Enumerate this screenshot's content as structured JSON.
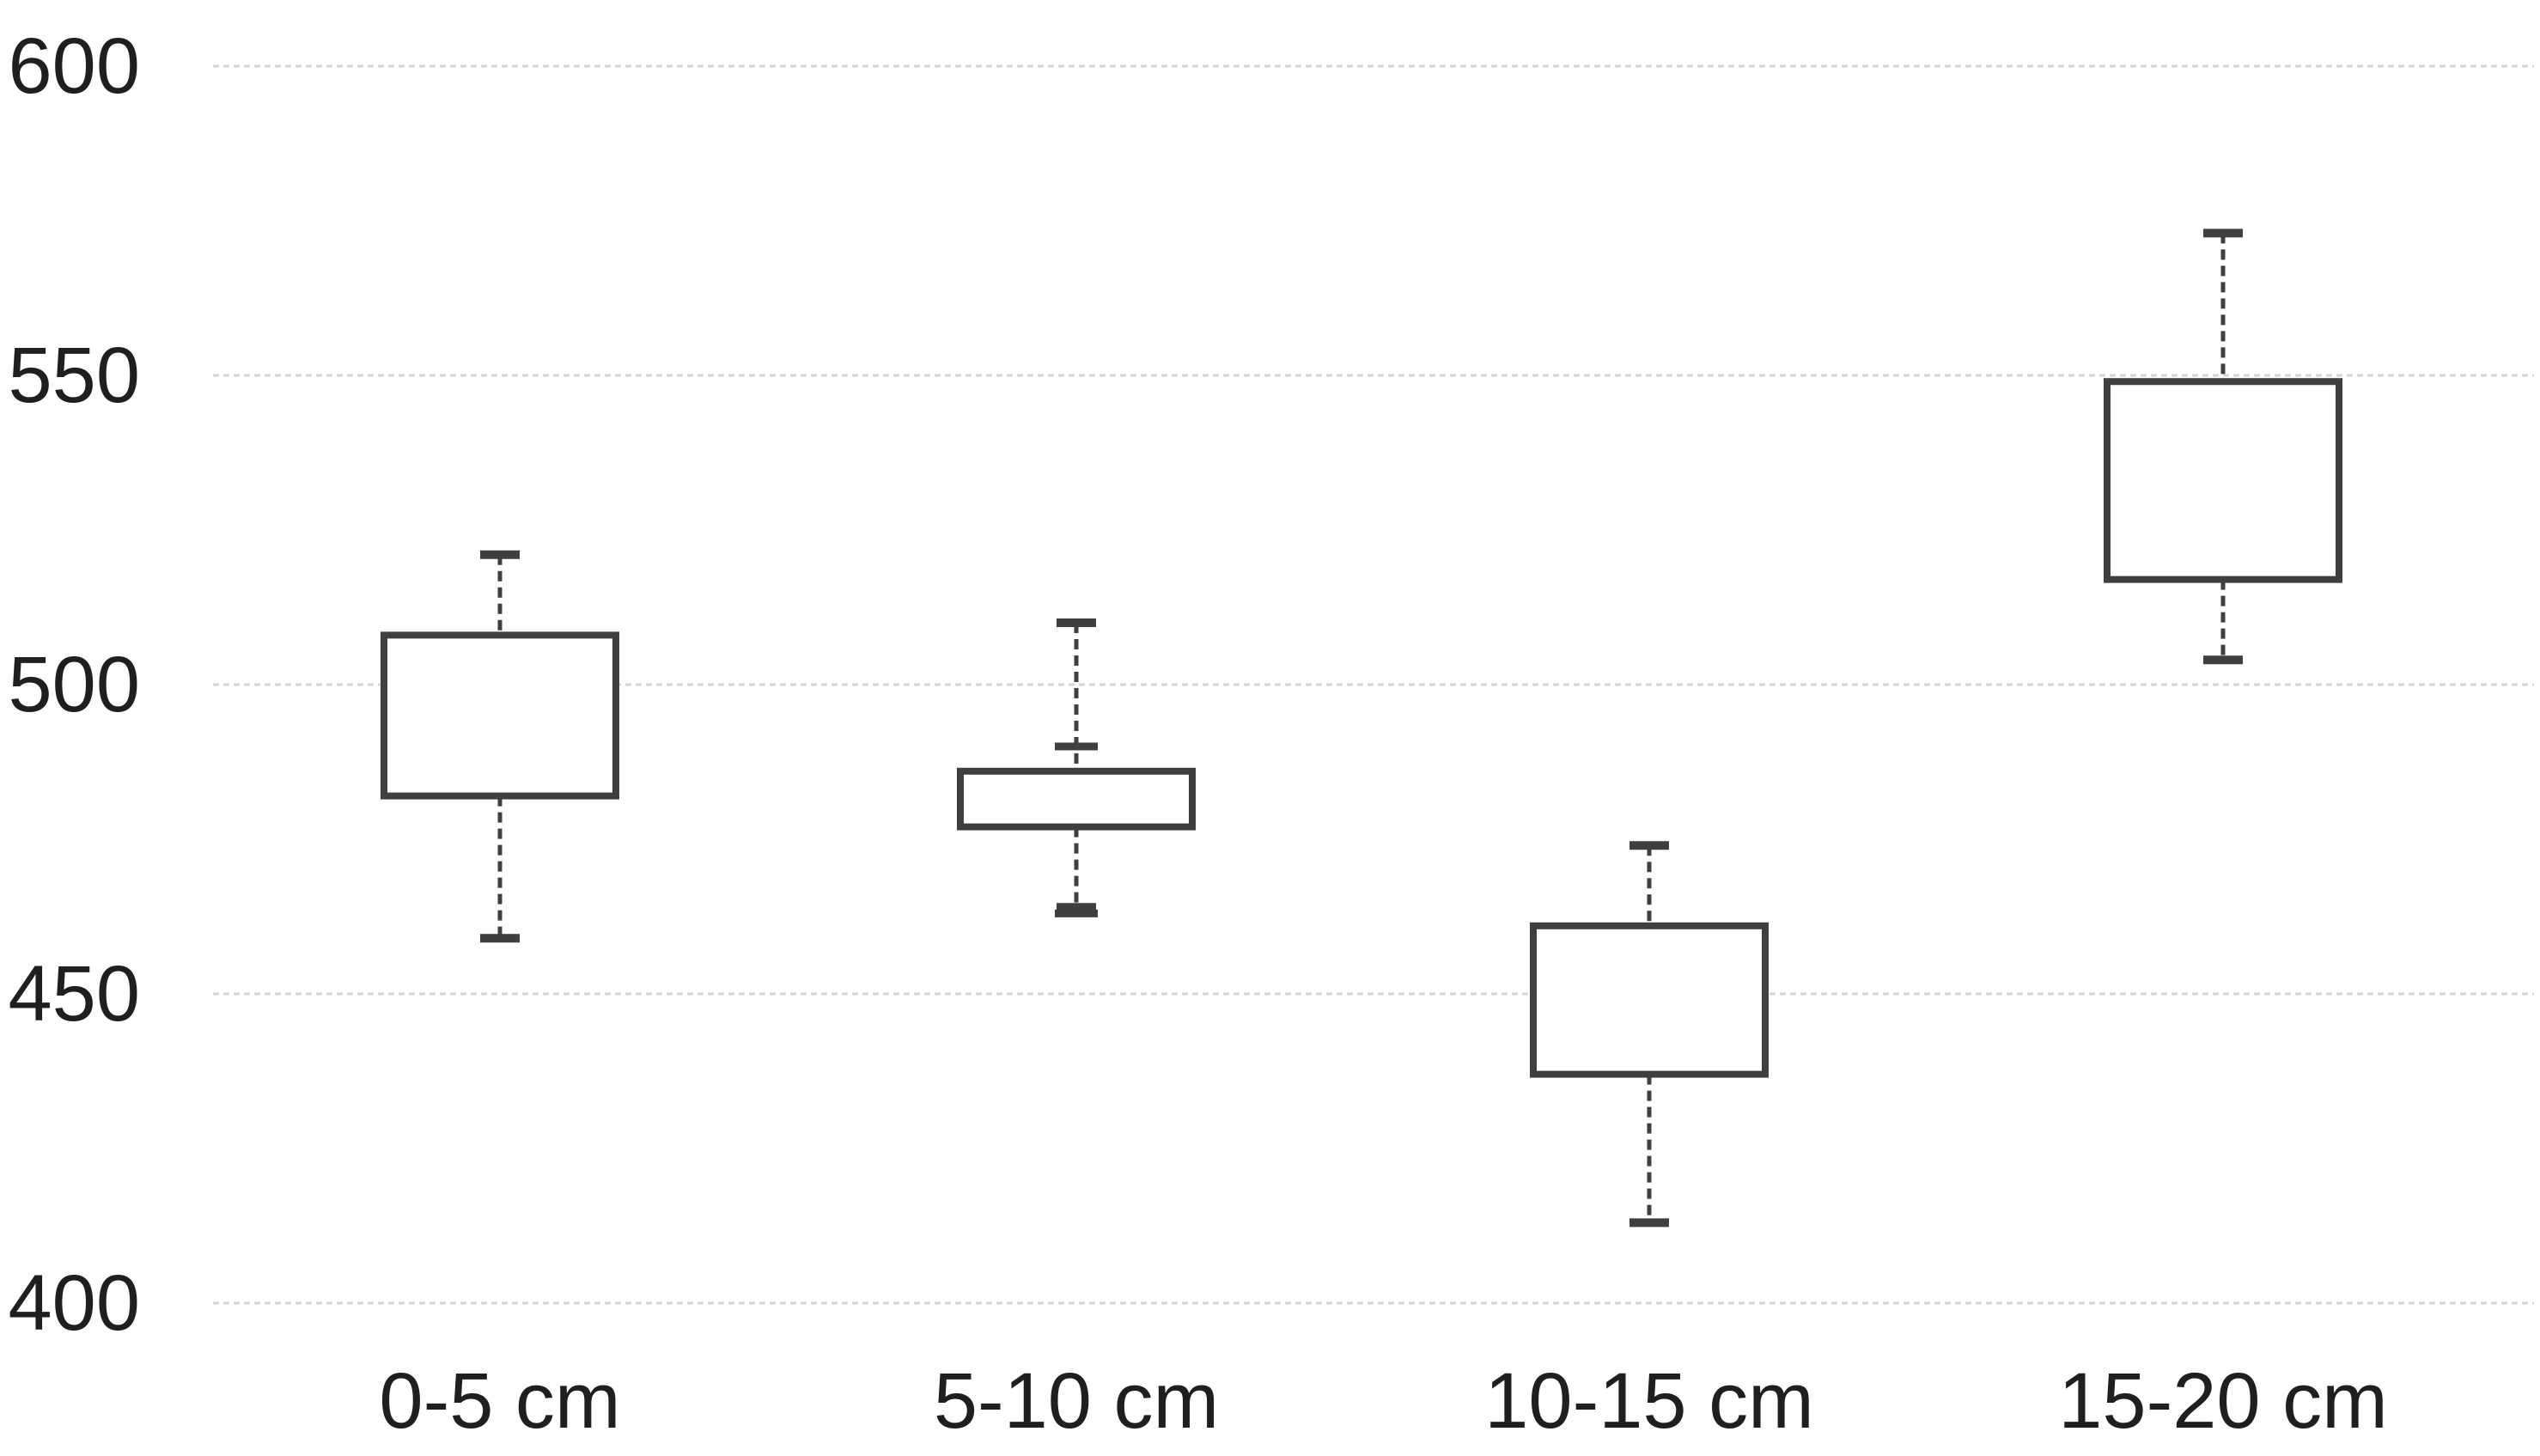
{
  "chart_data": {
    "type": "boxplot",
    "title": "",
    "xlabel": "",
    "ylabel": "",
    "categories": [
      "0-5 cm",
      "5-10 cm",
      "10-15 cm",
      "15-20 cm"
    ],
    "y_axis": {
      "min": 400,
      "max": 600,
      "tick_interval": 50,
      "tick_labels": [
        "400",
        "450",
        "500",
        "550",
        "600"
      ]
    },
    "grid": true,
    "legend": false,
    "median_shown": false,
    "boxes": [
      {
        "category": "0-5 cm",
        "whisker_high": 521,
        "q3": 508,
        "q1": 482,
        "whisker_low": 459,
        "extra_ticks": []
      },
      {
        "category": "5-10 cm",
        "whisker_high": 510,
        "q3": 486,
        "q1": 477,
        "whisker_low": 464,
        "extra_ticks": [
          490,
          463
        ]
      },
      {
        "category": "10-15 cm",
        "whisker_high": 474,
        "q3": 461,
        "q1": 437,
        "whisker_low": 413,
        "extra_ticks": []
      },
      {
        "category": "15-20 cm",
        "whisker_high": 573,
        "q3": 549,
        "q1": 517,
        "whisker_low": 504,
        "extra_ticks": []
      }
    ]
  },
  "style": {
    "background": "#ffffff",
    "box_line_color": "#3f3f3f",
    "grid_color": "#d6d6d6",
    "text_color": "#1f1f1f"
  }
}
